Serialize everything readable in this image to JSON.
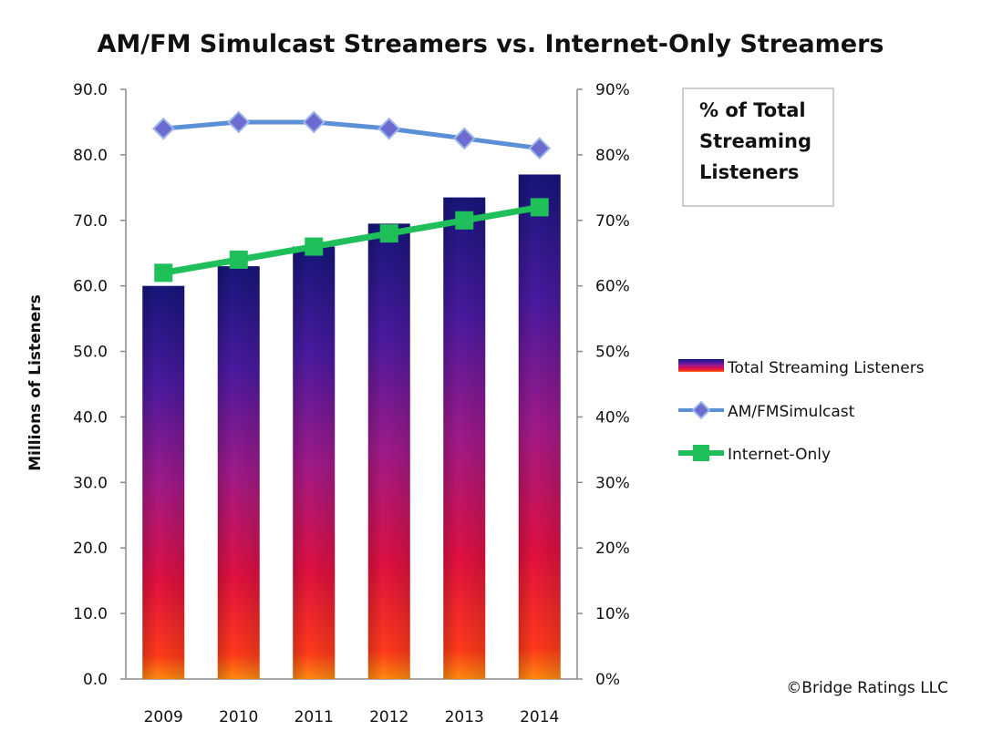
{
  "chart_data": {
    "type": "bar",
    "title": "AM/FM Simulcast Streamers vs. Internet-Only Streamers",
    "ylabel": "Millions of Listeners",
    "xlabel": "",
    "categories": [
      "2009",
      "2010",
      "2011",
      "2012",
      "2013",
      "2014"
    ],
    "ylim": [
      0,
      90
    ],
    "y2lim": [
      0,
      0.9
    ],
    "y_ticks": [
      "0.0",
      "10.0",
      "20.0",
      "30.0",
      "40.0",
      "50.0",
      "60.0",
      "70.0",
      "80.0",
      "90.0"
    ],
    "y2_ticks": [
      "0%",
      "10%",
      "20%",
      "30%",
      "40%",
      "50%",
      "60%",
      "70%",
      "80%",
      "90%"
    ],
    "grid": false,
    "series": [
      {
        "name": "Total Streaming  Listeners",
        "type": "bar",
        "axis": "left",
        "values": [
          60.0,
          63.0,
          66.0,
          69.5,
          73.5,
          77.0
        ],
        "gradient": [
          "#1b1b80",
          "#7a1aa0",
          "#d01060",
          "#ff2020",
          "#ff7a10"
        ]
      },
      {
        "name": "AM/FMSimulcast",
        "type": "line",
        "axis": "right",
        "marker": "diamond",
        "color": "#5b8fd6",
        "marker_color": "#6b6bd0",
        "values": [
          0.84,
          0.85,
          0.85,
          0.84,
          0.825,
          0.81
        ]
      },
      {
        "name": "Internet-Only",
        "type": "line",
        "axis": "right",
        "marker": "square",
        "color": "#1fbf5a",
        "values": [
          0.62,
          0.64,
          0.66,
          0.68,
          0.7,
          0.72
        ]
      }
    ],
    "annotation_box": "% of Total Streaming Listeners",
    "legend_position": "right",
    "credit": "©Bridge Ratings LLC"
  }
}
